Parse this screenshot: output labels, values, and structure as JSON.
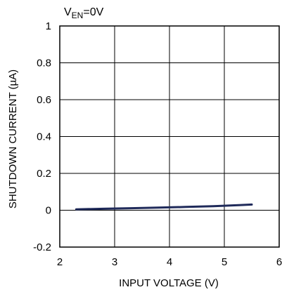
{
  "chart_data": {
    "type": "line",
    "condition": {
      "prefix": "V",
      "subscript": "EN",
      "suffix": "=0V"
    },
    "xlabel": "INPUT VOLTAGE (V)",
    "ylabel": "SHUTDOWN CURRENT (µA)",
    "xlim": [
      2,
      6
    ],
    "ylim": [
      -0.2,
      1
    ],
    "xticks": [
      "2",
      "3",
      "4",
      "5",
      "6"
    ],
    "yticks": [
      "-0.2",
      "0",
      "0.2",
      "0.4",
      "0.6",
      "0.8",
      "1"
    ],
    "grid": true,
    "series": [
      {
        "color": "#1f2a5a",
        "x": [
          2.3,
          2.8,
          3.3,
          3.8,
          4.3,
          4.8,
          5.3,
          5.5
        ],
        "y": [
          0.005,
          0.008,
          0.011,
          0.014,
          0.018,
          0.022,
          0.028,
          0.031
        ]
      }
    ]
  }
}
